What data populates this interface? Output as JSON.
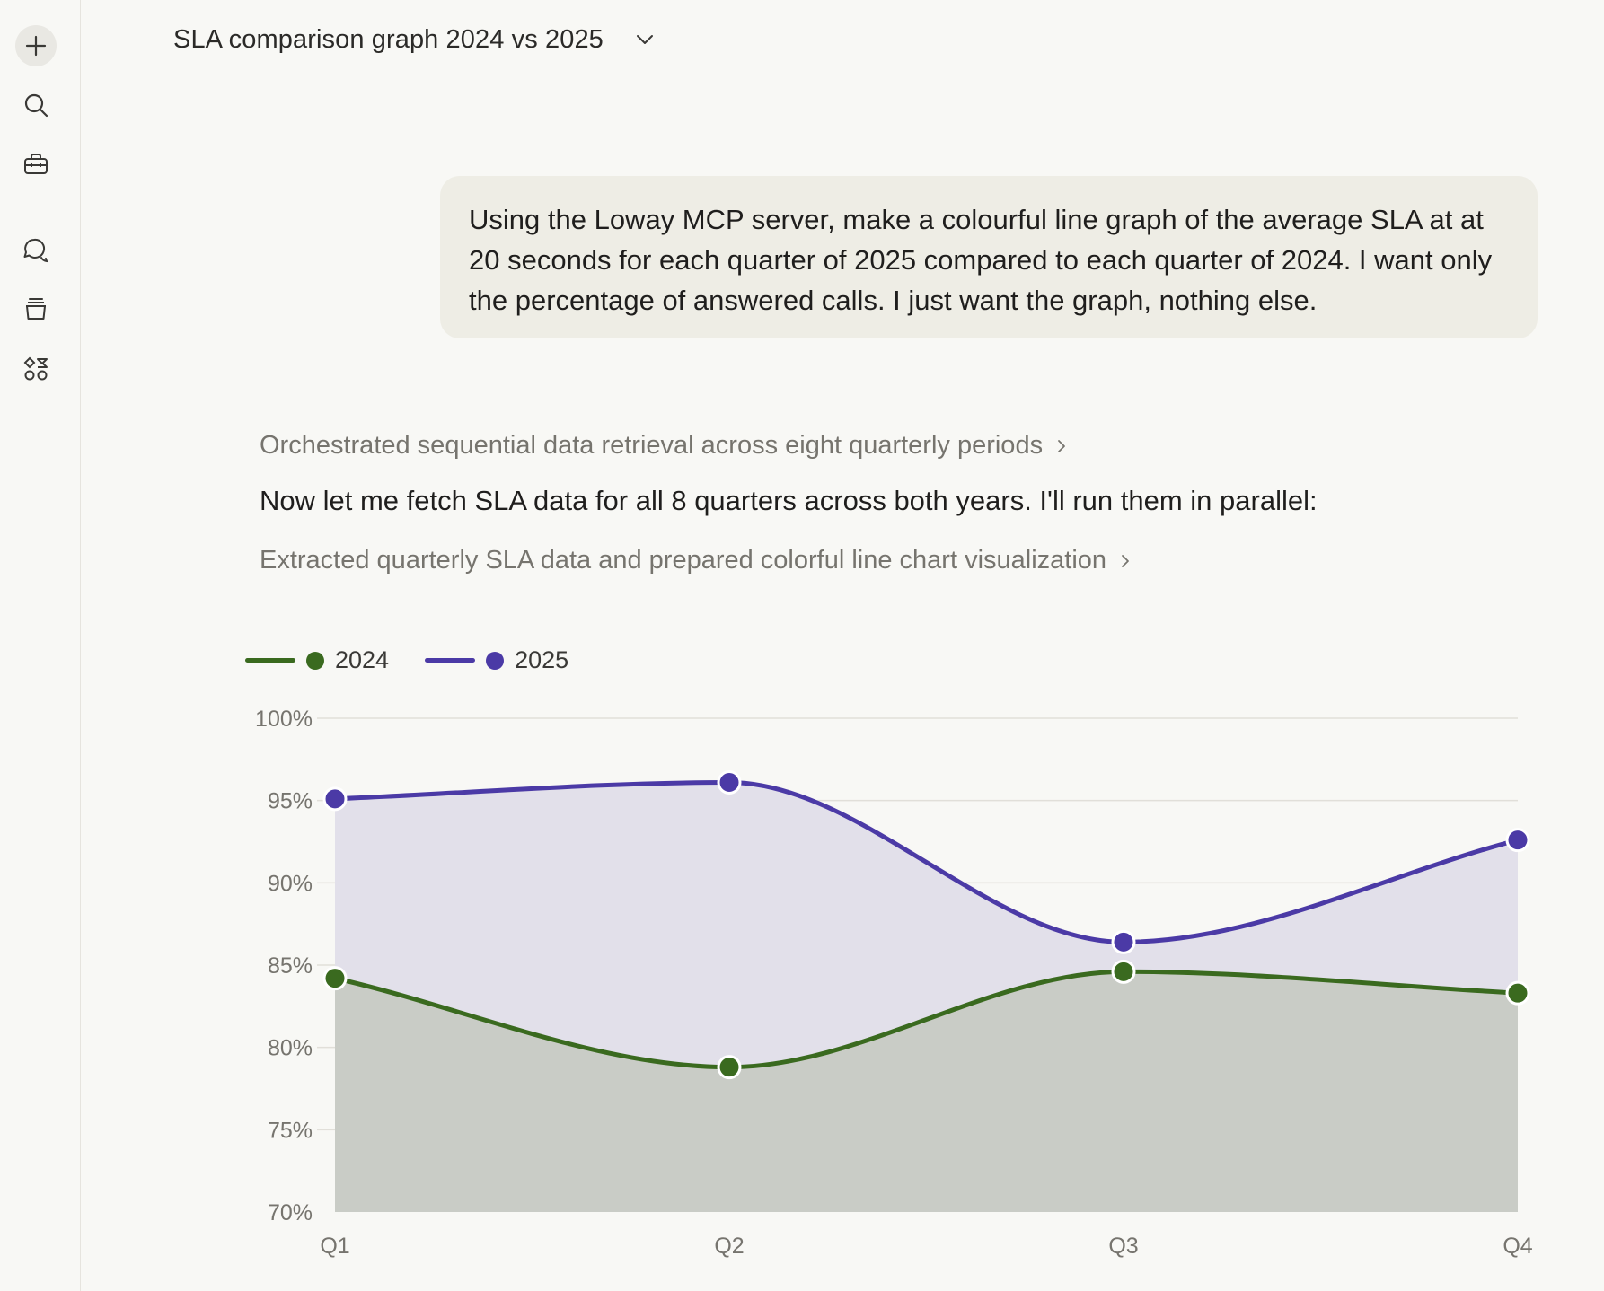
{
  "header": {
    "title": "SLA comparison graph 2024 vs 2025"
  },
  "sidebar": {
    "items": [
      "new-chat-icon",
      "search-icon",
      "toolbox-icon",
      "chats-icon",
      "projects-icon",
      "artifacts-icon"
    ]
  },
  "conversation": {
    "user_message": "Using the Loway MCP server, make a colourful line graph of the average SLA at at 20 seconds for each quarter of 2025 compared to each quarter of 2024. I want only the percentage of answered calls. I just want the graph, nothing else.",
    "thinking_1": "Orchestrated sequential data retrieval across eight quarterly periods",
    "reply": "Now let me fetch SLA data for all 8 quarters across both years. I'll run them in parallel:",
    "thinking_2": "Extracted quarterly SLA data and prepared colorful line chart visualization"
  },
  "chart_data": {
    "type": "area",
    "categories": [
      "Q1",
      "Q2",
      "Q3",
      "Q4"
    ],
    "series": [
      {
        "name": "2024",
        "color": "#3a6a1f",
        "fill": "#c9ccc6",
        "values": [
          84.2,
          78.8,
          84.6,
          83.3
        ]
      },
      {
        "name": "2025",
        "color": "#4b3aa6",
        "fill": "#e2e0ea",
        "values": [
          95.1,
          96.1,
          86.4,
          92.6
        ]
      }
    ],
    "yticks": [
      70,
      75,
      80,
      85,
      90,
      95,
      100
    ],
    "ytick_labels": [
      "70%",
      "75%",
      "80%",
      "85%",
      "90%",
      "95%",
      "100%"
    ],
    "ylim": [
      70,
      100
    ],
    "title": "",
    "xlabel": "",
    "ylabel": "",
    "legend_position": "top-left"
  }
}
